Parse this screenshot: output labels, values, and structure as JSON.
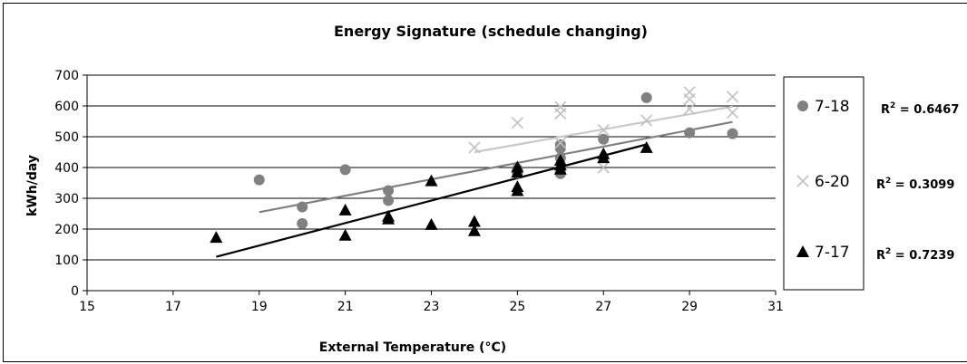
{
  "chart_data": {
    "type": "scatter",
    "title": "Energy Signature (schedule changing)",
    "xlabel": "External Temperature (°C)",
    "ylabel": "kWh/day",
    "xlim": [
      15,
      31
    ],
    "ylim": [
      0,
      700
    ],
    "xticks": [
      15,
      17,
      19,
      21,
      23,
      25,
      27,
      29,
      31
    ],
    "yticks": [
      0,
      100,
      200,
      300,
      400,
      500,
      600,
      700
    ],
    "grid": "horizontal",
    "legend_placement": "right",
    "series": [
      {
        "name": "7-18",
        "marker": "circle",
        "color": "#808080",
        "trend_color": "#808080",
        "r2_label": "R",
        "r2_sup": "2",
        "r2_value": " = 0.6467",
        "trend": [
          [
            19,
            255
          ],
          [
            30,
            548
          ]
        ],
        "points": [
          [
            19,
            360
          ],
          [
            20,
            272
          ],
          [
            20,
            218
          ],
          [
            21,
            393
          ],
          [
            22,
            325
          ],
          [
            22,
            293
          ],
          [
            25,
            382
          ],
          [
            25,
            395
          ],
          [
            26,
            474
          ],
          [
            26,
            462
          ],
          [
            26,
            431
          ],
          [
            26,
            380
          ],
          [
            27,
            492
          ],
          [
            28,
            627
          ],
          [
            29,
            513
          ],
          [
            30,
            510
          ]
        ]
      },
      {
        "name": "6-20",
        "marker": "x",
        "color": "#bfbfbf",
        "trend_color": "#c8c8c8",
        "r2_label": "R",
        "r2_sup": "2",
        "r2_value": " = 0.3099",
        "trend": [
          [
            24,
            450
          ],
          [
            30,
            598
          ]
        ],
        "points": [
          [
            24,
            465
          ],
          [
            25,
            545
          ],
          [
            26,
            597
          ],
          [
            26,
            575
          ],
          [
            26,
            480
          ],
          [
            27,
            522
          ],
          [
            27,
            400
          ],
          [
            28,
            553
          ],
          [
            29,
            645
          ],
          [
            29,
            622
          ],
          [
            29,
            590
          ],
          [
            30,
            630
          ],
          [
            30,
            578
          ]
        ]
      },
      {
        "name": "7-17",
        "marker": "triangle",
        "color": "#000000",
        "trend_color": "#000000",
        "r2_label": "R",
        "r2_sup": "2",
        "r2_value": " = 0.7239",
        "trend": [
          [
            18,
            110
          ],
          [
            28,
            475
          ]
        ],
        "points": [
          [
            18,
            173
          ],
          [
            21,
            262
          ],
          [
            21,
            180
          ],
          [
            22,
            242
          ],
          [
            22,
            233
          ],
          [
            23,
            357
          ],
          [
            23,
            215
          ],
          [
            24,
            225
          ],
          [
            24,
            195
          ],
          [
            25,
            402
          ],
          [
            25,
            385
          ],
          [
            25,
            338
          ],
          [
            25,
            325
          ],
          [
            26,
            423
          ],
          [
            26,
            408
          ],
          [
            26,
            395
          ],
          [
            27,
            445
          ],
          [
            27,
            432
          ],
          [
            28,
            465
          ]
        ]
      }
    ]
  }
}
